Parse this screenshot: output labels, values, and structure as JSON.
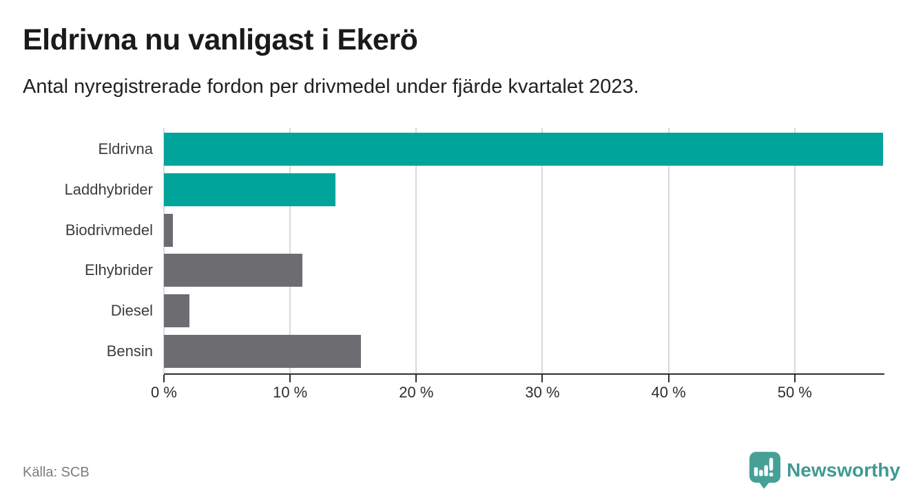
{
  "header": {
    "title": "Eldrivna nu vanligast i Ekerö",
    "subtitle": "Antal nyregistrerade fordon per drivmedel under fjärde kvartalet 2023."
  },
  "footer": {
    "source": "Källa: SCB",
    "brand_name": "Newsworthy",
    "brand_icon": "newsworthy-pin-chart-icon"
  },
  "colors": {
    "accent_teal": "#00a49a",
    "bar_gray": "#6c6c71",
    "logo_teal": "#47a097",
    "logo_text_teal": "#3f9a91",
    "gridline": "#d9d9d9",
    "axis": "#2d2d2d",
    "title_text": "#1a1a1a",
    "source_text": "#7b7b7b"
  },
  "chart_data": {
    "type": "bar",
    "orientation": "horizontal",
    "title": "Eldrivna nu vanligast i Ekerö",
    "subtitle": "Antal nyregistrerade fordon per drivmedel under fjärde kvartalet 2023.",
    "categories": [
      "Eldrivna",
      "Laddhybrider",
      "Biodrivmedel",
      "Elhybrider",
      "Diesel",
      "Bensin"
    ],
    "values": [
      57,
      13.6,
      0.7,
      11,
      2,
      15.6
    ],
    "unit": "%",
    "bar_colors": [
      "#00a49a",
      "#00a49a",
      "#6c6c71",
      "#6c6c71",
      "#6c6c71",
      "#6c6c71"
    ],
    "xlim": [
      0,
      57
    ],
    "ticks": [
      0,
      10,
      20,
      30,
      40,
      50
    ],
    "tick_labels": [
      "0 %",
      "10 %",
      "20 %",
      "30 %",
      "40 %",
      "50 %"
    ],
    "grid": true,
    "legend": false,
    "source": "Källa: SCB"
  }
}
